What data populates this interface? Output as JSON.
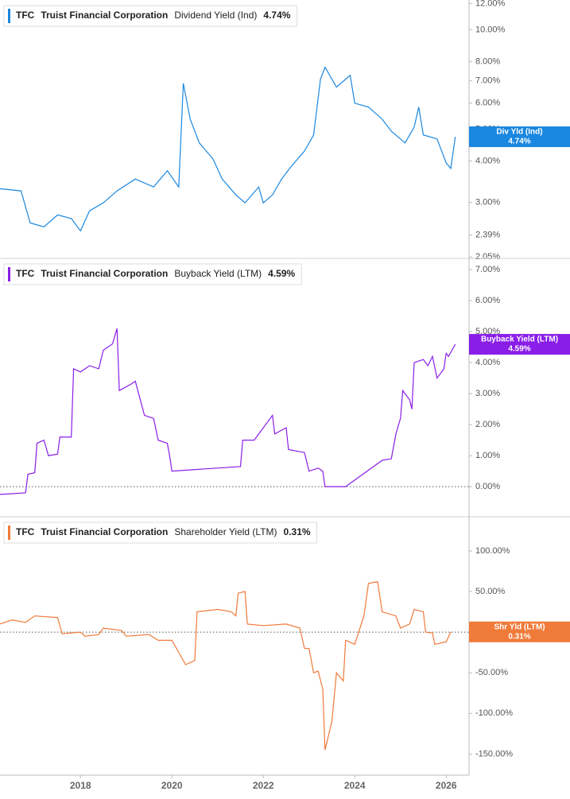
{
  "chart_data": [
    {
      "type": "line",
      "ticker": "TFC",
      "company": "Truist Financial Corporation",
      "log": true,
      "zero_line": false,
      "xlim": [
        2016.24,
        2026.5
      ],
      "ylim": [
        2.03,
        12.3
      ],
      "yticks": [
        {
          "value": 12,
          "label": "12.00%"
        },
        {
          "value": 10,
          "label": "10.00%"
        },
        {
          "value": 8,
          "label": "8.00%"
        },
        {
          "value": 7,
          "label": "7.00%"
        },
        {
          "value": 6,
          "label": "6.00%"
        },
        {
          "value": 5,
          "label": "5.00%"
        },
        {
          "value": 4,
          "label": "4.00%"
        },
        {
          "value": 3,
          "label": "3.00%"
        },
        {
          "value": 2.39,
          "label": "2.39%"
        },
        {
          "value": 2.05,
          "label": "2.05%"
        }
      ],
      "x": [
        2016.24,
        2016.7,
        2016.9,
        2017.2,
        2017.5,
        2017.8,
        2018.0,
        2018.2,
        2018.5,
        2018.8,
        2019.2,
        2019.6,
        2019.9,
        2020.15,
        2020.25,
        2020.4,
        2020.6,
        2020.9,
        2021.1,
        2021.4,
        2021.6,
        2021.9,
        2022.0,
        2022.2,
        2022.4,
        2022.6,
        2022.9,
        2023.1,
        2023.25,
        2023.35,
        2023.6,
        2023.9,
        2024.0,
        2024.3,
        2024.6,
        2024.8,
        2025.1,
        2025.3,
        2025.4,
        2025.5,
        2025.8,
        2026.0,
        2026.1,
        2026.2
      ],
      "series": [
        {
          "name": "Dividend Yield (Ind)",
          "color": "#1a87e0",
          "values": [
            3.3,
            3.25,
            2.6,
            2.53,
            2.75,
            2.68,
            2.46,
            2.83,
            2.99,
            3.25,
            3.53,
            3.34,
            3.74,
            3.34,
            6.88,
            5.36,
            4.54,
            4.06,
            3.53,
            3.16,
            2.99,
            3.34,
            2.99,
            3.16,
            3.53,
            3.84,
            4.29,
            4.8,
            7.08,
            7.7,
            6.7,
            7.28,
            5.99,
            5.83,
            5.36,
            4.93,
            4.54,
            5.07,
            5.83,
            4.8,
            4.67,
            3.95,
            3.8,
            4.74
          ]
        }
      ],
      "badge": {
        "label": "Div Yld (Ind)",
        "value": 4.74,
        "value_label": "4.74%"
      }
    },
    {
      "type": "line",
      "ticker": "TFC",
      "company": "Truist Financial Corporation",
      "log": false,
      "zero_line": true,
      "xlim": [
        2016.24,
        2026.5
      ],
      "ylim": [
        -0.97,
        7.36
      ],
      "yticks": [
        {
          "value": 7,
          "label": "7.00%"
        },
        {
          "value": 6,
          "label": "6.00%"
        },
        {
          "value": 5,
          "label": "5.00%"
        },
        {
          "value": 4,
          "label": "4.00%"
        },
        {
          "value": 3,
          "label": "3.00%"
        },
        {
          "value": 2,
          "label": "2.00%"
        },
        {
          "value": 1,
          "label": "1.00%"
        },
        {
          "value": 0,
          "label": "0.00%"
        }
      ],
      "x": [
        2016.24,
        2016.8,
        2016.85,
        2017.0,
        2017.05,
        2017.2,
        2017.3,
        2017.5,
        2017.55,
        2017.8,
        2017.85,
        2018.0,
        2018.2,
        2018.4,
        2018.5,
        2018.7,
        2018.8,
        2018.85,
        2019.1,
        2019.2,
        2019.4,
        2019.6,
        2019.7,
        2019.9,
        2019.95,
        2020.0,
        2021.5,
        2021.55,
        2021.8,
        2021.85,
        2022.0,
        2022.2,
        2022.25,
        2022.5,
        2022.55,
        2022.9,
        2023.0,
        2023.2,
        2023.3,
        2023.35,
        2023.8,
        2024.6,
        2024.8,
        2024.9,
        2025.0,
        2025.05,
        2025.2,
        2025.25,
        2025.3,
        2025.5,
        2025.6,
        2025.7,
        2025.8,
        2025.95,
        2026.0,
        2026.05,
        2026.2
      ],
      "series": [
        {
          "name": "Buyback Yield (LTM)",
          "color": "#8a1ee8",
          "values": [
            -0.25,
            -0.2,
            0.4,
            0.45,
            1.4,
            1.5,
            1.0,
            1.05,
            1.6,
            1.6,
            3.8,
            3.7,
            3.9,
            3.8,
            4.4,
            4.6,
            5.1,
            3.1,
            3.3,
            3.4,
            2.3,
            2.2,
            1.5,
            1.4,
            1.0,
            0.5,
            0.65,
            1.5,
            1.5,
            1.6,
            1.9,
            2.3,
            1.7,
            1.9,
            1.2,
            1.1,
            0.5,
            0.6,
            0.5,
            0.0,
            0.0,
            0.85,
            0.9,
            1.7,
            2.2,
            3.1,
            2.8,
            2.5,
            4.0,
            4.1,
            3.9,
            4.2,
            3.5,
            3.8,
            4.3,
            4.2,
            4.59
          ]
        }
      ],
      "badge": {
        "label": "Buyback Yield (LTM)",
        "value": 4.59,
        "value_label": "4.59%"
      }
    },
    {
      "type": "line",
      "ticker": "TFC",
      "company": "Truist Financial Corporation",
      "log": false,
      "zero_line": true,
      "xlim": [
        2016.24,
        2026.5
      ],
      "ylim": [
        -176,
        142
      ],
      "xticks": [
        2018,
        2020,
        2022,
        2024,
        2026
      ],
      "yticks": [
        {
          "value": 100,
          "label": "100.00%"
        },
        {
          "value": 50,
          "label": "50.00%"
        },
        {
          "value": 0,
          "label": "0.00%"
        },
        {
          "value": -50,
          "label": "-50.00%"
        },
        {
          "value": -100,
          "label": "-100.00%"
        },
        {
          "value": -150,
          "label": "-150.00%"
        }
      ],
      "x": [
        2016.24,
        2016.5,
        2016.8,
        2017.0,
        2017.5,
        2017.6,
        2018.0,
        2018.1,
        2018.4,
        2018.5,
        2018.9,
        2019.0,
        2019.5,
        2019.7,
        2020.0,
        2020.3,
        2020.5,
        2020.55,
        2021.0,
        2021.3,
        2021.4,
        2021.45,
        2021.6,
        2021.65,
        2022.0,
        2022.5,
        2022.8,
        2022.9,
        2023.0,
        2023.1,
        2023.2,
        2023.3,
        2023.35,
        2023.5,
        2023.6,
        2023.75,
        2023.8,
        2024.0,
        2024.2,
        2024.3,
        2024.5,
        2024.6,
        2024.9,
        2025.0,
        2025.2,
        2025.3,
        2025.5,
        2025.55,
        2025.7,
        2025.75,
        2026.0,
        2026.1
      ],
      "series": [
        {
          "name": "Shareholder Yield (LTM)",
          "color": "#f07a3a",
          "values": [
            10,
            15,
            12,
            20,
            18,
            -2,
            0,
            -5,
            -3,
            5,
            2,
            -5,
            -3,
            -10,
            -10,
            -40,
            -35,
            25,
            28,
            25,
            20,
            48,
            50,
            10,
            8,
            10,
            5,
            -20,
            -20,
            -50,
            -48,
            -70,
            -145,
            -110,
            -50,
            -60,
            -10,
            -15,
            20,
            60,
            62,
            25,
            20,
            5,
            10,
            28,
            25,
            0,
            -1,
            -15,
            -12,
            0.31
          ]
        }
      ],
      "badge": {
        "label": "Shr Yld (LTM)",
        "value": 0.31,
        "value_label": "0.31%"
      }
    }
  ]
}
